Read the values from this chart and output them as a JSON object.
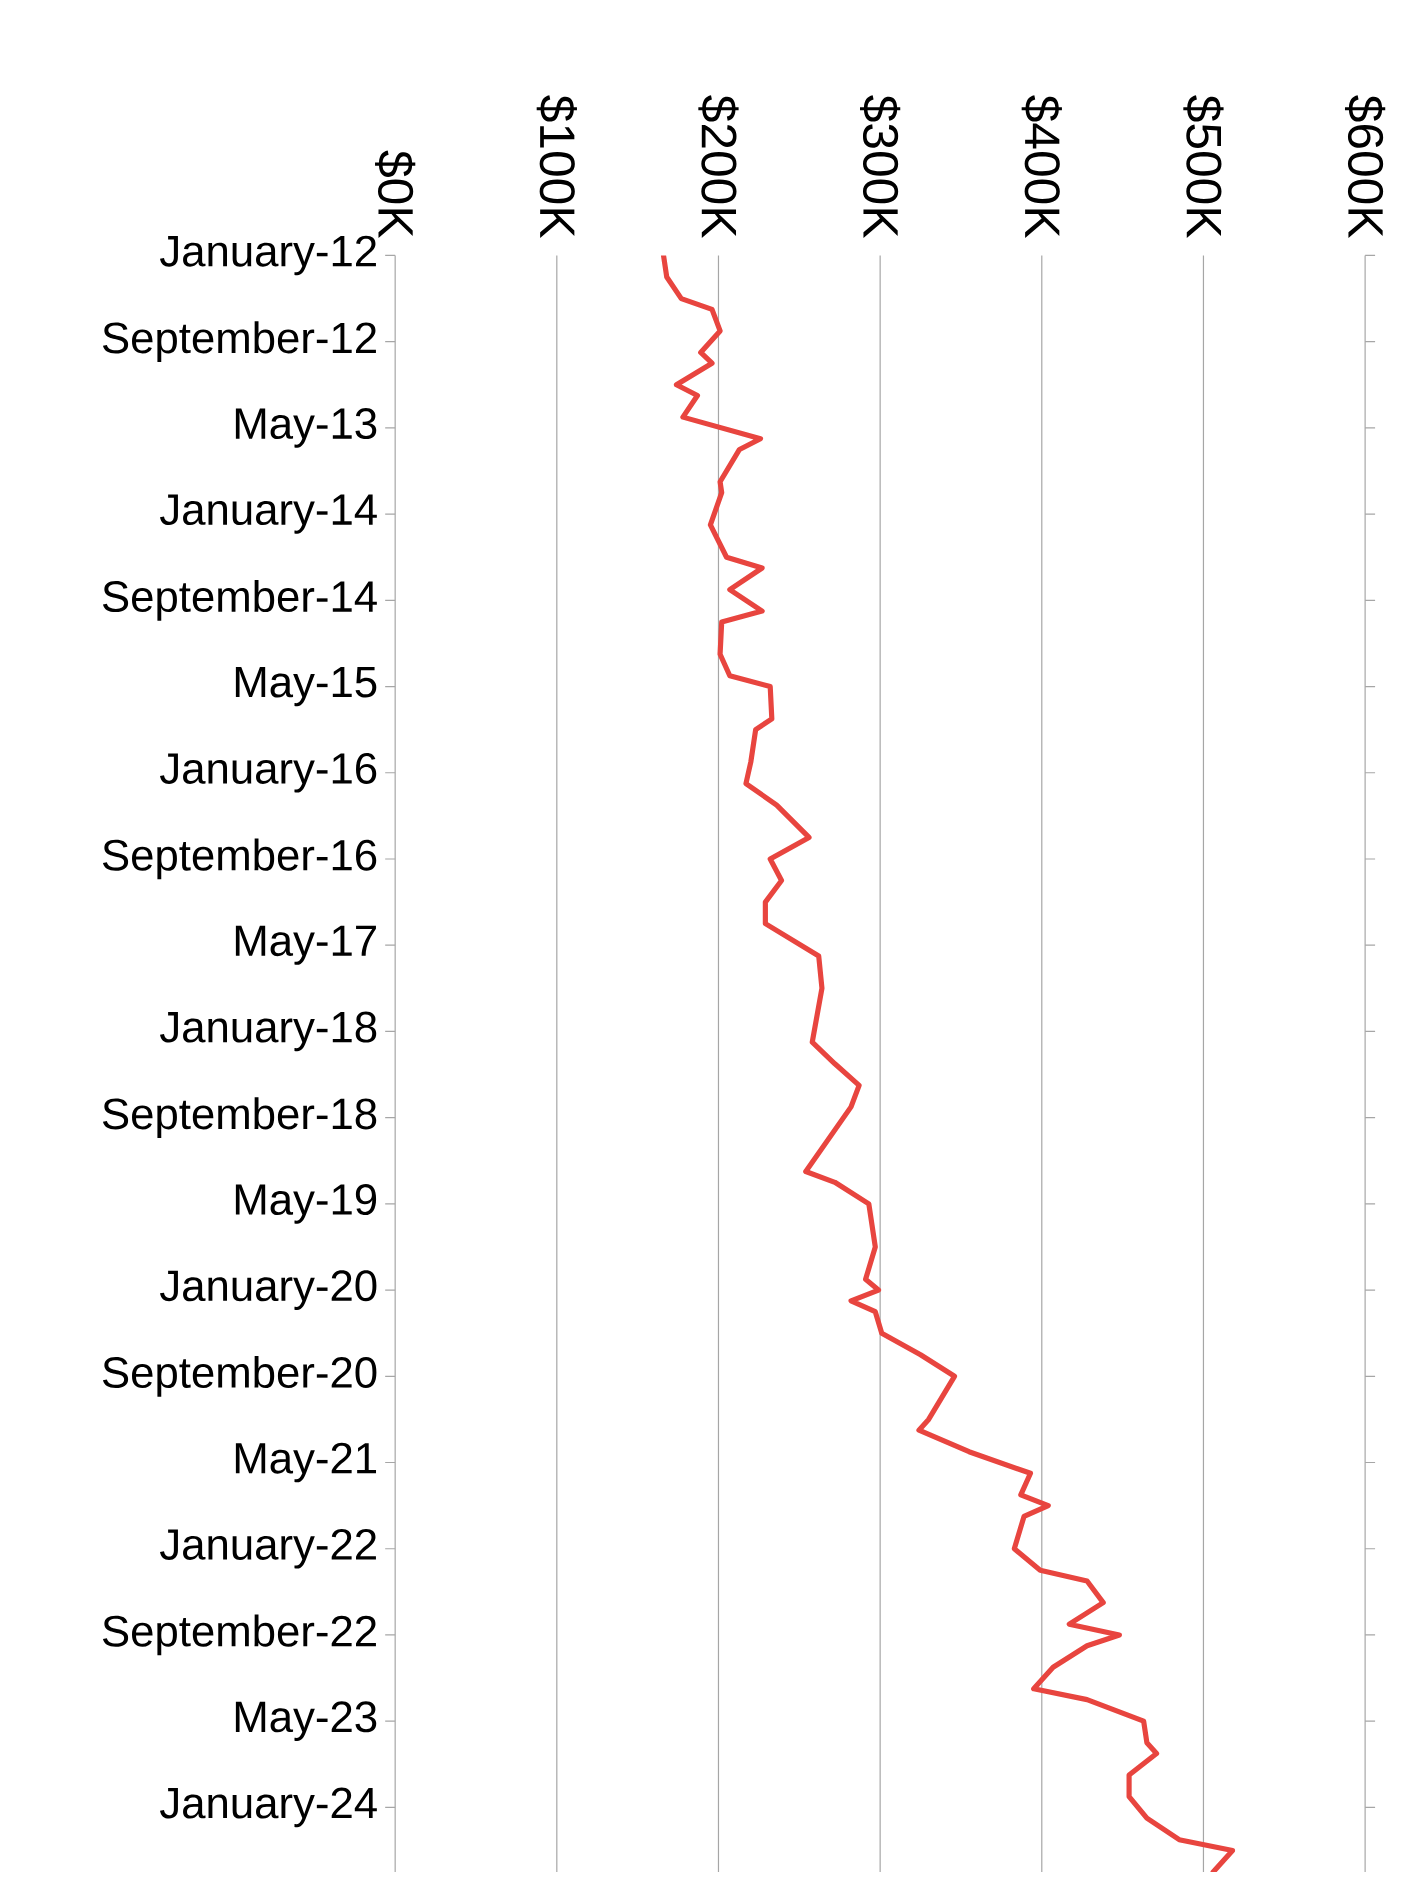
{
  "chart_data": {
    "type": "line",
    "orientation": "horizontal",
    "color": "#e8453f",
    "grid": "x",
    "x": [
      "2012-01",
      "2012-03",
      "2012-05",
      "2012-06",
      "2012-08",
      "2012-10",
      "2012-11",
      "2013-01",
      "2013-02",
      "2013-04",
      "2013-06",
      "2013-07",
      "2013-10",
      "2013-11",
      "2014-02",
      "2014-05",
      "2014-06",
      "2014-08",
      "2014-10",
      "2014-11",
      "2015-02",
      "2015-04",
      "2015-05",
      "2015-08",
      "2015-09",
      "2015-12",
      "2016-02",
      "2016-04",
      "2016-07",
      "2016-09",
      "2016-11",
      "2017-01",
      "2017-03",
      "2017-06",
      "2017-09",
      "2018-02",
      "2018-04",
      "2018-06",
      "2018-08",
      "2019-02",
      "2019-03",
      "2019-05",
      "2019-09",
      "2019-12",
      "2020-01",
      "2020-02",
      "2020-03",
      "2020-05",
      "2020-07",
      "2020-09",
      "2021-01",
      "2021-02",
      "2021-04",
      "2021-06",
      "2021-08",
      "2021-09",
      "2021-10",
      "2022-01",
      "2022-03",
      "2022-04",
      "2022-06",
      "2022-08",
      "2022-09",
      "2022-10",
      "2022-12",
      "2023-02",
      "2023-03",
      "2023-05",
      "2023-07",
      "2023-08",
      "2023-10",
      "2023-12",
      "2024-02",
      "2024-04",
      "2024-05",
      "2024-07"
    ],
    "values": [
      166000,
      168000,
      177000,
      196000,
      201000,
      189000,
      196000,
      174000,
      187000,
      178000,
      226000,
      213000,
      201000,
      202000,
      195000,
      205000,
      227000,
      207000,
      227000,
      202000,
      201000,
      207000,
      232000,
      233000,
      223000,
      220000,
      217000,
      236000,
      256000,
      232000,
      239000,
      229000,
      229000,
      262000,
      264000,
      258000,
      272000,
      287000,
      282000,
      254000,
      272000,
      293000,
      297000,
      291000,
      299000,
      282000,
      297000,
      301000,
      325000,
      346000,
      330000,
      324000,
      355000,
      393000,
      387000,
      404000,
      389000,
      383000,
      399000,
      428000,
      438000,
      417000,
      448000,
      428000,
      407000,
      395000,
      428000,
      463000,
      465000,
      471000,
      454000,
      454000,
      465000,
      485000,
      518000,
      506000
    ],
    "xlim": [
      0,
      600000
    ],
    "xticks": [
      {
        "value": 0,
        "label": "$0K"
      },
      {
        "value": 100000,
        "label": "$100K"
      },
      {
        "value": 200000,
        "label": "$200K"
      },
      {
        "value": 300000,
        "label": "$300K"
      },
      {
        "value": 400000,
        "label": "$400K"
      },
      {
        "value": 500000,
        "label": "$500K"
      },
      {
        "value": 600000,
        "label": "$600K"
      }
    ],
    "ylim": [
      "2024-07",
      "2012-01"
    ],
    "yticks": [
      {
        "value": "2012-01",
        "label": "January-12"
      },
      {
        "value": "2012-09",
        "label": "September-12"
      },
      {
        "value": "2013-05",
        "label": "May-13"
      },
      {
        "value": "2014-01",
        "label": "January-14"
      },
      {
        "value": "2014-09",
        "label": "September-14"
      },
      {
        "value": "2015-05",
        "label": "May-15"
      },
      {
        "value": "2016-01",
        "label": "January-16"
      },
      {
        "value": "2016-09",
        "label": "September-16"
      },
      {
        "value": "2017-05",
        "label": "May-17"
      },
      {
        "value": "2018-01",
        "label": "January-18"
      },
      {
        "value": "2018-09",
        "label": "September-18"
      },
      {
        "value": "2019-05",
        "label": "May-19"
      },
      {
        "value": "2020-01",
        "label": "January-20"
      },
      {
        "value": "2020-09",
        "label": "September-20"
      },
      {
        "value": "2021-05",
        "label": "May-21"
      },
      {
        "value": "2022-01",
        "label": "January-22"
      },
      {
        "value": "2022-09",
        "label": "September-22"
      },
      {
        "value": "2023-05",
        "label": "May-23"
      },
      {
        "value": "2024-01",
        "label": "January-24"
      }
    ]
  }
}
